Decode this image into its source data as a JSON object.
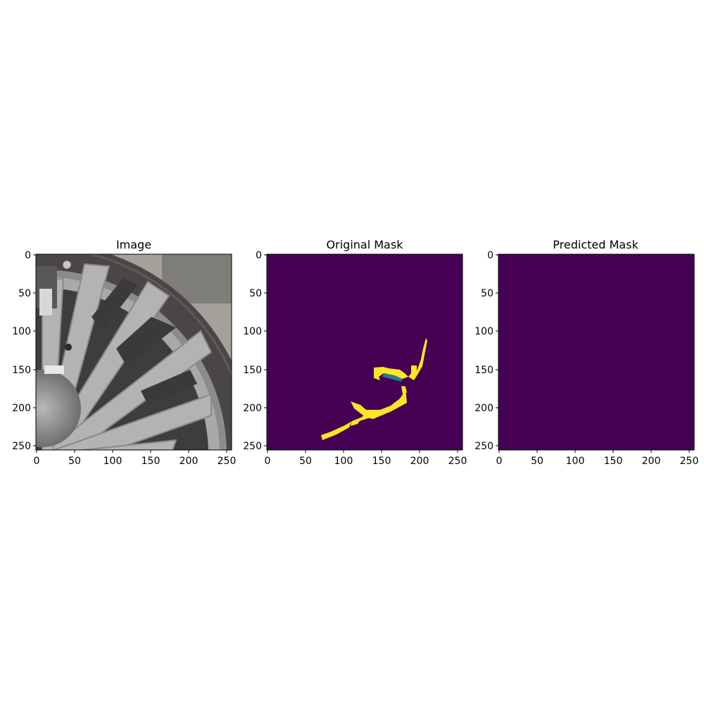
{
  "figure": {
    "panels": [
      {
        "title": "Image",
        "content": "photo",
        "xticks": [
          "0",
          "50",
          "100",
          "150",
          "200",
          "250"
        ],
        "yticks": [
          "0",
          "50",
          "100",
          "150",
          "200",
          "250"
        ]
      },
      {
        "title": "Original Mask",
        "content": "mask",
        "xticks": [
          "0",
          "50",
          "100",
          "150",
          "200",
          "250"
        ],
        "yticks": [
          "0",
          "50",
          "100",
          "150",
          "200",
          "250"
        ]
      },
      {
        "title": "Predicted Mask",
        "content": "empty",
        "xticks": [
          "0",
          "50",
          "100",
          "150",
          "200",
          "250"
        ],
        "yticks": [
          "0",
          "50",
          "100",
          "150",
          "200",
          "250"
        ]
      }
    ],
    "image_extent": [
      0,
      256
    ],
    "mask_colors": {
      "background": "#440154",
      "foreground": "#fde725"
    }
  }
}
